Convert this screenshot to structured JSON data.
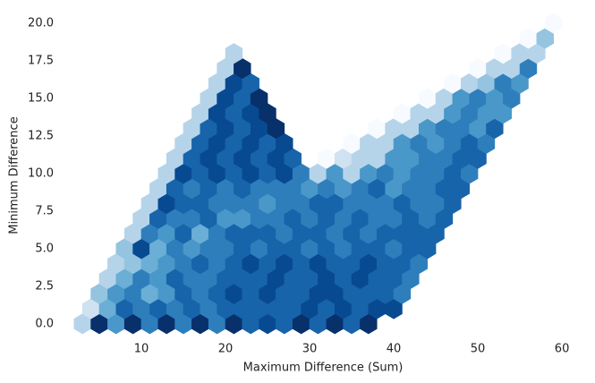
{
  "chart_data": {
    "type": "hexbin",
    "cmap": "Blues",
    "xlabel": "Maximum Difference (Sum)",
    "ylabel": "Minimum Difference",
    "xlim": [
      1.3,
      61.8
    ],
    "ylim": [
      -1.2,
      20.9
    ],
    "xticks": [
      10,
      20,
      30,
      40,
      50,
      60
    ],
    "yticks": [
      {
        "value": 0,
        "label": "0.0"
      },
      {
        "value": 2.5,
        "label": "2.5"
      },
      {
        "value": 5,
        "label": "5.0"
      },
      {
        "value": 7.5,
        "label": "7.5"
      },
      {
        "value": 10,
        "label": "10.0"
      },
      {
        "value": 12.5,
        "label": "12.5"
      },
      {
        "value": 15,
        "label": "15.0"
      },
      {
        "value": 17.5,
        "label": "17.5"
      },
      {
        "value": 20,
        "label": "20.0"
      }
    ],
    "rows": [
      {
        "y": 0,
        "x": [
          3,
          5,
          7,
          9,
          11,
          13,
          15,
          17,
          19,
          21,
          23,
          25,
          27,
          29,
          31,
          33,
          35,
          37
        ],
        "values": [
          3,
          10,
          6,
          10,
          7,
          10,
          7,
          10,
          7,
          10,
          8,
          9,
          8,
          10,
          8,
          10,
          8,
          10
        ]
      },
      {
        "y": 1,
        "x": [
          4,
          6,
          8,
          10,
          12,
          14,
          16,
          18,
          20,
          22,
          24,
          26,
          28,
          30,
          32,
          34,
          36,
          38,
          40
        ],
        "values": [
          2,
          5,
          8,
          7,
          8,
          7,
          8,
          7,
          8,
          8,
          8,
          8,
          8,
          9,
          8,
          9,
          8,
          9,
          9
        ]
      },
      {
        "y": 2,
        "x": [
          5,
          7,
          9,
          11,
          13,
          15,
          17,
          19,
          21,
          23,
          25,
          27,
          29,
          31,
          33,
          35,
          37,
          39,
          41
        ],
        "values": [
          4,
          6,
          7,
          5,
          6,
          8,
          7,
          8,
          9,
          8,
          9,
          8,
          8,
          9,
          9,
          8,
          8,
          8,
          7
        ]
      },
      {
        "y": 3,
        "x": [
          6,
          8,
          10,
          12,
          14,
          16,
          18,
          20,
          22,
          24,
          26,
          28,
          30,
          32,
          34,
          36,
          38,
          40,
          42
        ],
        "values": [
          3,
          5,
          7,
          6,
          8,
          7,
          7,
          8,
          8,
          8,
          9,
          8,
          8,
          9,
          8,
          9,
          8,
          8,
          7
        ]
      },
      {
        "y": 4,
        "x": [
          7,
          9,
          11,
          13,
          15,
          17,
          19,
          21,
          23,
          25,
          27,
          29,
          31,
          33,
          35,
          37,
          39,
          41,
          43
        ],
        "values": [
          3,
          4,
          5,
          6,
          7,
          8,
          7,
          8,
          9,
          8,
          9,
          8,
          9,
          8,
          8,
          9,
          8,
          8,
          7
        ]
      },
      {
        "y": 5,
        "x": [
          8,
          10,
          12,
          14,
          16,
          18,
          20,
          22,
          24,
          26,
          28,
          30,
          32,
          34,
          36,
          38,
          40,
          42,
          44
        ],
        "values": [
          4,
          9,
          5,
          7,
          6,
          7,
          7,
          8,
          7,
          8,
          8,
          7,
          8,
          7,
          8,
          8,
          7,
          8,
          8
        ]
      },
      {
        "y": 6,
        "x": [
          9,
          11,
          13,
          15,
          17,
          19,
          21,
          23,
          25,
          27,
          29,
          31,
          33,
          35,
          37,
          39,
          41,
          43,
          45
        ],
        "values": [
          3,
          7,
          6,
          8,
          5,
          7,
          8,
          8,
          8,
          7,
          8,
          8,
          7,
          8,
          7,
          8,
          8,
          8,
          8
        ]
      },
      {
        "y": 7,
        "x": [
          10,
          12,
          14,
          16,
          18,
          20,
          22,
          24,
          26,
          28,
          30,
          32,
          34,
          36,
          38,
          40,
          42,
          44,
          46
        ],
        "values": [
          3,
          8,
          7,
          7,
          8,
          6,
          6,
          7,
          7,
          8,
          7,
          8,
          7,
          8,
          7,
          7,
          8,
          7,
          8
        ]
      },
      {
        "y": 8,
        "x": [
          11,
          13,
          15,
          17,
          19,
          21,
          23,
          25,
          27,
          29,
          31,
          33,
          35,
          37,
          39,
          41,
          43,
          45,
          47
        ],
        "values": [
          3,
          9,
          8,
          8,
          7,
          7,
          7,
          6,
          7,
          7,
          8,
          8,
          7,
          7,
          7,
          8,
          7,
          7,
          8
        ]
      },
      {
        "y": 9,
        "x": [
          12,
          14,
          16,
          18,
          20,
          22,
          24,
          26,
          28,
          30,
          32,
          34,
          36,
          38,
          40,
          42,
          44,
          46,
          48
        ],
        "values": [
          3,
          8,
          7,
          8,
          7,
          8,
          7,
          7,
          7,
          6,
          7,
          6,
          7,
          8,
          6,
          7,
          7,
          8,
          8
        ]
      },
      {
        "y": 10,
        "x": [
          13,
          15,
          17,
          19,
          21,
          23,
          25,
          27,
          29,
          31,
          33,
          35,
          37,
          39,
          41,
          43,
          45,
          47,
          49
        ],
        "values": [
          3,
          9,
          8,
          9,
          8,
          9,
          8,
          9,
          7,
          3,
          6,
          3,
          6,
          7,
          6,
          7,
          7,
          8,
          7
        ]
      },
      {
        "y": 11,
        "x": [
          14,
          16,
          18,
          20,
          22,
          24,
          26,
          28,
          32,
          34,
          36,
          38,
          40,
          42,
          44,
          46,
          48,
          50
        ],
        "values": [
          3,
          8,
          9,
          8,
          9,
          8,
          9,
          8,
          0,
          2,
          3,
          3,
          6,
          6,
          7,
          7,
          8,
          8
        ]
      },
      {
        "y": 12,
        "x": [
          15,
          17,
          19,
          21,
          23,
          25,
          27,
          35,
          37,
          39,
          41,
          43,
          45,
          47,
          49,
          51
        ],
        "values": [
          3,
          8,
          9,
          8,
          9,
          8,
          9,
          0,
          3,
          3,
          6,
          7,
          6,
          7,
          8,
          7
        ]
      },
      {
        "y": 13,
        "x": [
          16,
          18,
          20,
          22,
          24,
          26,
          38,
          40,
          42,
          44,
          46,
          48,
          50,
          52
        ],
        "values": [
          3,
          8,
          9,
          8,
          9,
          10,
          0,
          3,
          3,
          6,
          7,
          7,
          6,
          8
        ]
      },
      {
        "y": 14,
        "x": [
          17,
          19,
          21,
          23,
          25,
          41,
          43,
          45,
          47,
          49,
          51,
          53
        ],
        "values": [
          3,
          9,
          8,
          9,
          10,
          0,
          3,
          3,
          6,
          7,
          6,
          6
        ]
      },
      {
        "y": 15,
        "x": [
          18,
          20,
          22,
          24,
          44,
          46,
          48,
          50,
          52,
          54
        ],
        "values": [
          3,
          9,
          8,
          10,
          0,
          3,
          6,
          7,
          6,
          7
        ]
      },
      {
        "y": 16,
        "x": [
          19,
          21,
          23,
          47,
          49,
          51,
          53,
          55
        ],
        "values": [
          3,
          9,
          8,
          0,
          3,
          4,
          7,
          6
        ]
      },
      {
        "y": 17,
        "x": [
          20,
          22,
          50,
          52,
          54,
          56
        ],
        "values": [
          3,
          10,
          0,
          3,
          3,
          7
        ]
      },
      {
        "y": 18,
        "x": [
          21,
          53,
          55,
          57
        ],
        "values": [
          3,
          0,
          3,
          3
        ]
      },
      {
        "y": 19,
        "x": [
          56,
          58
        ],
        "values": [
          0,
          4
        ]
      },
      {
        "y": 20,
        "x": [
          59
        ],
        "values": [
          0
        ]
      }
    ]
  }
}
